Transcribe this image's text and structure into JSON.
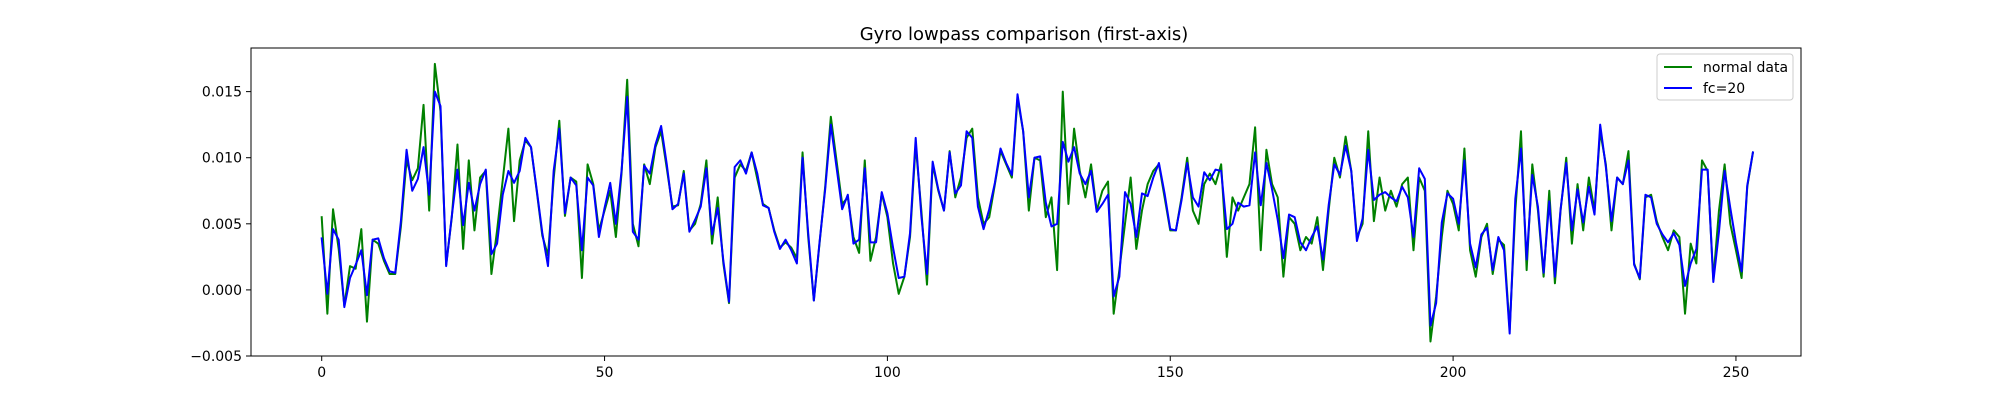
{
  "colors": {
    "normal_data": "#008000",
    "fc20": "#0000ff",
    "frame": "#000000",
    "legend_border": "#cccccc",
    "background": "#ffffff"
  },
  "chart_data": {
    "type": "line",
    "title": "Gyro lowpass comparison (first-axis)",
    "xlabel": "",
    "ylabel": "",
    "xlim": [
      -12.5,
      261.5
    ],
    "ylim": [
      -0.005,
      0.0183
    ],
    "x_ticks": [
      0,
      50,
      100,
      150,
      200,
      250
    ],
    "x_tick_labels": [
      "0",
      "50",
      "100",
      "150",
      "200",
      "250"
    ],
    "y_ticks": [
      -0.005,
      0.0,
      0.005,
      0.01,
      0.015
    ],
    "y_tick_labels": [
      "−0.005",
      "0.000",
      "0.005",
      "0.010",
      "0.015"
    ],
    "grid": false,
    "legend_position": "upper right",
    "x_start": 0,
    "x_step": 1,
    "series": [
      {
        "name": "normal data",
        "color": "#008000",
        "values": [
          0.0055,
          -0.0018,
          0.0061,
          0.0031,
          -0.0012,
          0.0018,
          0.0016,
          0.0046,
          -0.0024,
          0.0038,
          0.0035,
          0.0022,
          0.0012,
          0.0012,
          0.0048,
          0.0098,
          0.0083,
          0.0092,
          0.014,
          0.006,
          0.0171,
          0.0135,
          0.0019,
          0.0055,
          0.011,
          0.0031,
          0.0098,
          0.0045,
          0.0085,
          0.009,
          0.0012,
          0.0045,
          0.0083,
          0.0122,
          0.0052,
          0.0098,
          0.0113,
          0.0108,
          0.0075,
          0.0041,
          0.0026,
          0.0084,
          0.0128,
          0.0056,
          0.0085,
          0.0082,
          0.0009,
          0.0095,
          0.008,
          0.0045,
          0.006,
          0.0075,
          0.004,
          0.0088,
          0.0159,
          0.005,
          0.0033,
          0.0095,
          0.008,
          0.0108,
          0.012,
          0.0092,
          0.0063,
          0.0064,
          0.009,
          0.0045,
          0.005,
          0.0065,
          0.0098,
          0.0035,
          0.007,
          0.002,
          -0.001,
          0.0085,
          0.0095,
          0.009,
          0.0104,
          0.0084,
          0.0065,
          0.0062,
          0.0045,
          0.0032,
          0.0036,
          0.0032,
          0.0024,
          0.0104,
          0.004,
          -0.0008,
          0.0035,
          0.0078,
          0.0131,
          0.0098,
          0.0065,
          0.007,
          0.004,
          0.0028,
          0.0098,
          0.0022,
          0.004,
          0.0073,
          0.0055,
          0.002,
          -0.0003,
          0.001,
          0.004,
          0.011,
          0.006,
          0.0004,
          0.0095,
          0.0075,
          0.006,
          0.0105,
          0.007,
          0.0085,
          0.0115,
          0.0122,
          0.007,
          0.005,
          0.0055,
          0.008,
          0.0105,
          0.0095,
          0.0085,
          0.0145,
          0.012,
          0.006,
          0.01,
          0.0098,
          0.0055,
          0.007,
          0.0015,
          0.015,
          0.0065,
          0.0122,
          0.009,
          0.007,
          0.0095,
          0.006,
          0.0075,
          0.0082,
          -0.0018,
          0.0015,
          0.005,
          0.0085,
          0.0031,
          0.006,
          0.008,
          0.009,
          0.0095,
          0.007,
          0.0045,
          0.0045,
          0.007,
          0.01,
          0.006,
          0.005,
          0.008,
          0.0088,
          0.008,
          0.0095,
          0.0025,
          0.007,
          0.006,
          0.007,
          0.008,
          0.0123,
          0.003,
          0.0106,
          0.008,
          0.007,
          0.001,
          0.0055,
          0.005,
          0.003,
          0.004,
          0.0035,
          0.0055,
          0.0015,
          0.006,
          0.01,
          0.0085,
          0.0116,
          0.009,
          0.004,
          0.005,
          0.012,
          0.0052,
          0.0085,
          0.006,
          0.0075,
          0.0063,
          0.008,
          0.0085,
          0.003,
          0.0085,
          0.0075,
          -0.0039,
          -0.0005,
          0.004,
          0.0075,
          0.0065,
          0.0045,
          0.0107,
          0.003,
          0.001,
          0.004,
          0.005,
          0.0012,
          0.0038,
          0.0034,
          -0.003,
          0.006,
          0.012,
          0.0015,
          0.0095,
          0.006,
          0.001,
          0.0075,
          0.0005,
          0.006,
          0.01,
          0.0035,
          0.008,
          0.0045,
          0.0085,
          0.006,
          0.012,
          0.0095,
          0.0045,
          0.0085,
          0.008,
          0.0105,
          0.002,
          0.0008,
          0.007,
          0.0072,
          0.0052,
          0.004,
          0.003,
          0.0045,
          0.004,
          -0.0018,
          0.0035,
          0.002,
          0.0098,
          0.009,
          0.0008,
          0.006,
          0.0095,
          0.005,
          0.003,
          0.0009,
          0.0078,
          0.0104
        ]
      },
      {
        "name": "fc=20",
        "color": "#0000ff",
        "values": [
          0.0039,
          -0.0003,
          0.0046,
          0.0038,
          -0.0013,
          0.0009,
          0.0019,
          0.003,
          -0.0004,
          0.0038,
          0.0039,
          0.0024,
          0.0014,
          0.0013,
          0.0052,
          0.0106,
          0.0075,
          0.0084,
          0.0108,
          0.0072,
          0.015,
          0.0139,
          0.0018,
          0.0056,
          0.0091,
          0.0049,
          0.0081,
          0.006,
          0.008,
          0.0091,
          0.0027,
          0.0035,
          0.0072,
          0.009,
          0.0081,
          0.009,
          0.0115,
          0.0108,
          0.0076,
          0.0043,
          0.0018,
          0.009,
          0.0122,
          0.0058,
          0.0085,
          0.0079,
          0.003,
          0.0085,
          0.0079,
          0.004,
          0.0062,
          0.0081,
          0.005,
          0.009,
          0.0146,
          0.0044,
          0.0038,
          0.0094,
          0.0088,
          0.011,
          0.0124,
          0.0095,
          0.0061,
          0.0065,
          0.0088,
          0.0044,
          0.0053,
          0.0063,
          0.0092,
          0.0042,
          0.0062,
          0.0022,
          -0.0009,
          0.0093,
          0.0098,
          0.0088,
          0.0104,
          0.0088,
          0.0064,
          0.0062,
          0.0044,
          0.0031,
          0.0038,
          0.003,
          0.002,
          0.01,
          0.0043,
          -0.0008,
          0.0036,
          0.0076,
          0.0125,
          0.0093,
          0.0061,
          0.0072,
          0.0035,
          0.0038,
          0.0092,
          0.0036,
          0.0036,
          0.0074,
          0.0058,
          0.0032,
          0.0009,
          0.001,
          0.0043,
          0.0115,
          0.0056,
          0.0012,
          0.0097,
          0.0076,
          0.006,
          0.0104,
          0.0073,
          0.0079,
          0.012,
          0.0115,
          0.0063,
          0.0046,
          0.0061,
          0.0081,
          0.0107,
          0.0096,
          0.0087,
          0.0148,
          0.012,
          0.007,
          0.01,
          0.0101,
          0.0066,
          0.0048,
          0.005,
          0.0112,
          0.0097,
          0.0108,
          0.0088,
          0.008,
          0.009,
          0.0059,
          0.0065,
          0.0072,
          -0.0005,
          0.001,
          0.0074,
          0.0065,
          0.004,
          0.0073,
          0.0071,
          0.0085,
          0.0096,
          0.0073,
          0.0046,
          0.0045,
          0.0068,
          0.0096,
          0.007,
          0.0063,
          0.0089,
          0.0083,
          0.0091,
          0.009,
          0.0046,
          0.005,
          0.0066,
          0.0063,
          0.0064,
          0.0104,
          0.0064,
          0.0096,
          0.0076,
          0.0053,
          0.0024,
          0.0057,
          0.0055,
          0.0036,
          0.003,
          0.004,
          0.0048,
          0.0023,
          0.0064,
          0.0095,
          0.0087,
          0.0109,
          0.009,
          0.0037,
          0.0054,
          0.0106,
          0.0068,
          0.0072,
          0.0074,
          0.007,
          0.0067,
          0.0078,
          0.007,
          0.004,
          0.0092,
          0.0084,
          -0.0027,
          -0.001,
          0.0051,
          0.0073,
          0.0069,
          0.005,
          0.0098,
          0.0035,
          0.0017,
          0.0042,
          0.0047,
          0.0015,
          0.004,
          0.003,
          -0.0033,
          0.0069,
          0.0107,
          0.0023,
          0.0087,
          0.0063,
          0.0013,
          0.0067,
          0.001,
          0.0061,
          0.0096,
          0.0045,
          0.0076,
          0.0051,
          0.0078,
          0.0057,
          0.0125,
          0.0093,
          0.0052,
          0.0085,
          0.008,
          0.0098,
          0.0019,
          0.0009,
          0.0072,
          0.007,
          0.005,
          0.0042,
          0.0036,
          0.0043,
          0.0034,
          0.0003,
          0.002,
          0.0031,
          0.0091,
          0.0091,
          0.0006,
          0.0044,
          0.009,
          0.0062,
          0.0036,
          0.0014,
          0.0079,
          0.0104
        ]
      }
    ]
  }
}
